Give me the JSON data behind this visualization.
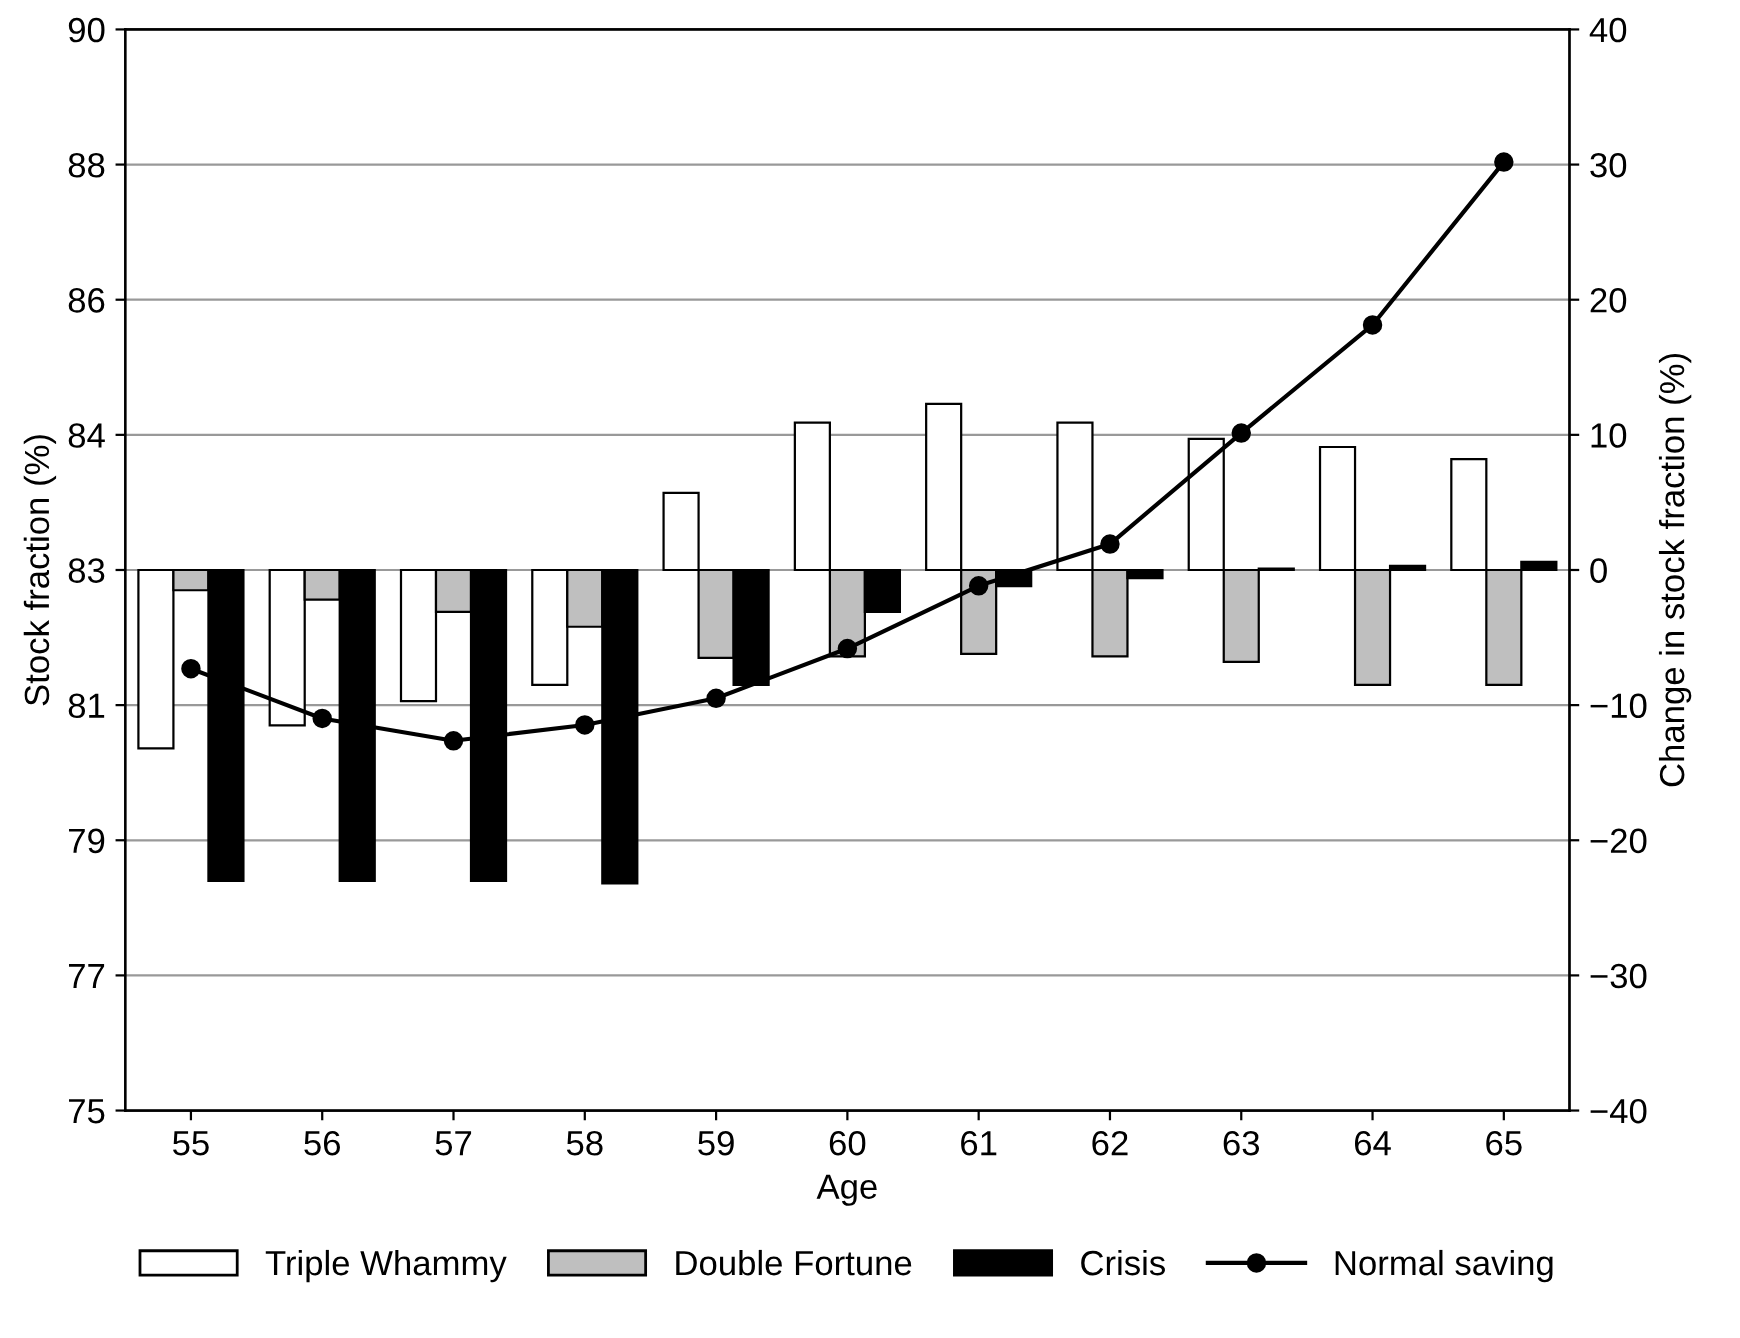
{
  "chart_data": {
    "type": "bar",
    "xlabel": "Age",
    "ylabel": "Stock fraction (%)",
    "y2label": "Change in stock fraction (%)",
    "categories": [
      "55",
      "56",
      "57",
      "58",
      "59",
      "60",
      "61",
      "62",
      "63",
      "64",
      "65"
    ],
    "series": [
      {
        "name": "Triple Whammy",
        "color": "#ffffff",
        "axis": "y2",
        "values": [
          -13.2,
          -11.5,
          -9.7,
          -8.5,
          5.7,
          10.9,
          12.3,
          10.9,
          9.7,
          9.1,
          8.2
        ]
      },
      {
        "name": "Double Fortune",
        "color": "#bfbfbf",
        "axis": "y2",
        "values": [
          -1.5,
          -2.2,
          -3.1,
          -4.2,
          -6.5,
          -6.4,
          -6.2,
          -6.4,
          -6.8,
          -8.5,
          -8.5
        ]
      },
      {
        "name": "Crisis",
        "color": "#000000",
        "axis": "y2",
        "values": [
          -23.0,
          -23.0,
          -23.0,
          -23.2,
          -8.5,
          -3.1,
          -1.2,
          -0.6,
          0.1,
          0.3,
          0.6
        ]
      },
      {
        "name": "Normal saving",
        "type": "line",
        "color": "#000000",
        "marker": "circle",
        "line_style": "solid",
        "axis": "y",
        "values": [
          81.13,
          80.44,
          80.13,
          80.35,
          80.72,
          81.41,
          82.28,
          82.86,
          84.4,
          85.9,
          88.16
        ]
      }
    ],
    "ylim": [
      75,
      90
    ],
    "yticks": [
      {
        "value": 75,
        "label": "75"
      },
      {
        "value": 76.875,
        "label": "77"
      },
      {
        "value": 78.75,
        "label": "79"
      },
      {
        "value": 80.625,
        "label": "81"
      },
      {
        "value": 82.5,
        "label": "83"
      },
      {
        "value": 84.375,
        "label": "84"
      },
      {
        "value": 86.25,
        "label": "86"
      },
      {
        "value": 88.125,
        "label": "88"
      },
      {
        "value": 90,
        "label": "90"
      }
    ],
    "y2lim": [
      -40,
      40
    ],
    "y2ticks": [
      -40,
      -30,
      -20,
      -10,
      0,
      10,
      20,
      30,
      40
    ],
    "grid": "y",
    "legend": "bottom"
  }
}
